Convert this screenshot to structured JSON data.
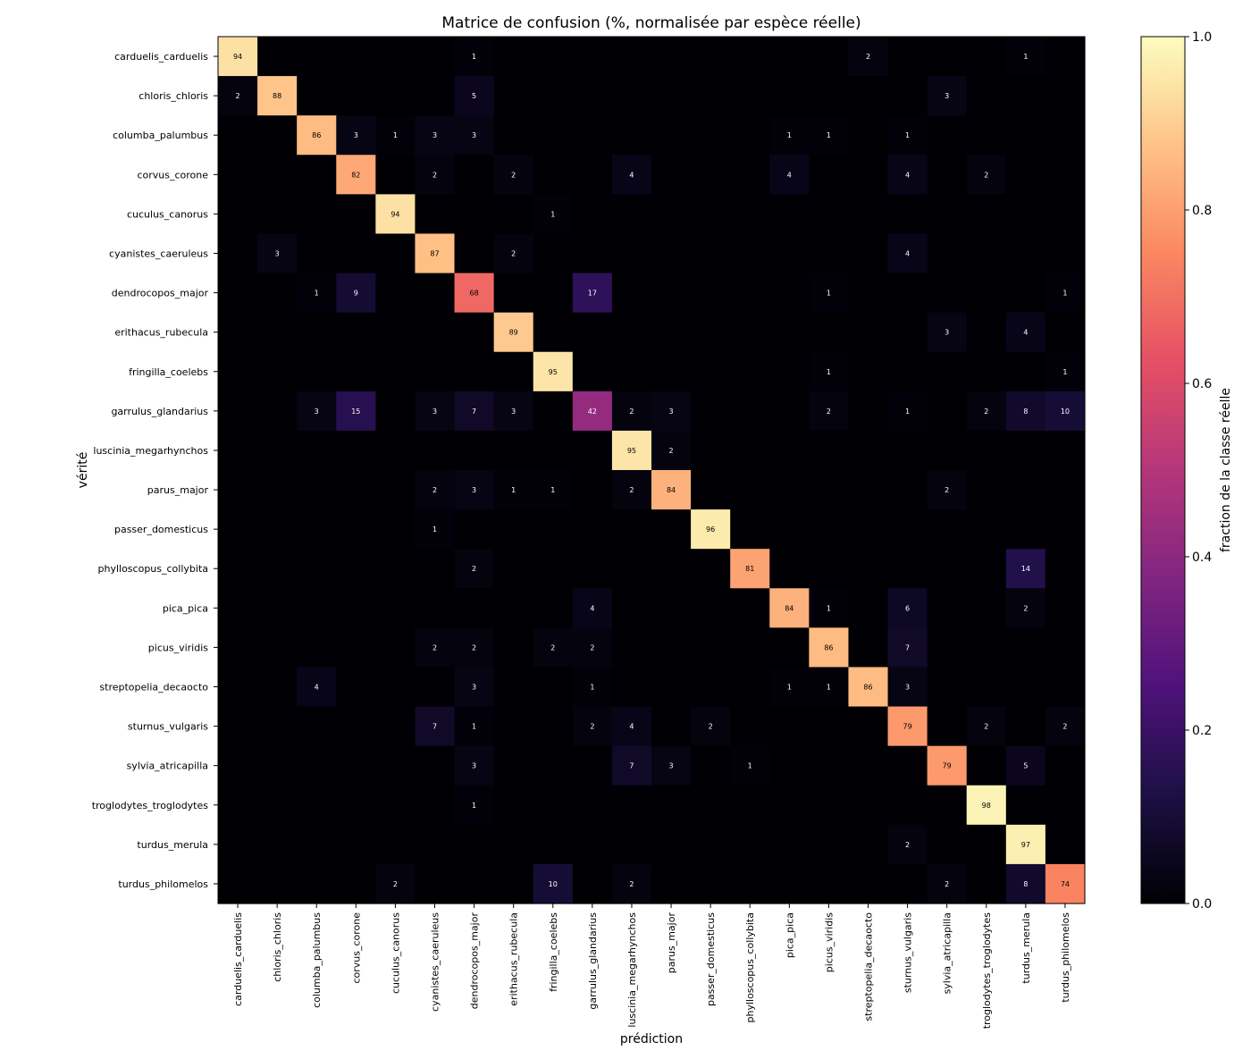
{
  "chart_data": {
    "type": "heatmap",
    "title": "Matrice de confusion (%, normalisée par espèce réelle)",
    "xlabel": "prédiction",
    "ylabel": "vérité",
    "colorbar": {
      "label": "fraction de la classe réelle",
      "range": [
        0.0,
        1.0
      ],
      "ticks": [
        "0.0",
        "0.2",
        "0.4",
        "0.6",
        "0.8",
        "1.0"
      ],
      "colormap": "magma"
    },
    "categories": [
      "carduelis_carduelis",
      "chloris_chloris",
      "columba_palumbus",
      "corvus_corone",
      "cuculus_canorus",
      "cyanistes_caeruleus",
      "dendrocopos_major",
      "erithacus_rubecula",
      "fringilla_coelebs",
      "garrulus_glandarius",
      "luscinia_megarhynchos",
      "parus_major",
      "passer_domesticus",
      "phylloscopus_collybita",
      "pica_pica",
      "picus_viridis",
      "streptopelia_decaocto",
      "sturnus_vulgaris",
      "sylvia_atricapilla",
      "troglodytes_troglodytes",
      "turdus_merula",
      "turdus_philomelos"
    ],
    "values": [
      [
        94,
        0,
        0,
        0,
        0,
        0,
        1,
        0,
        0,
        0,
        0,
        0,
        0,
        0,
        0,
        0,
        2,
        0,
        0,
        0,
        1,
        0
      ],
      [
        2,
        88,
        0,
        0,
        0,
        0,
        5,
        0,
        0,
        0,
        0,
        0,
        0,
        0,
        0,
        0,
        0,
        0,
        3,
        0,
        0,
        0
      ],
      [
        0,
        0,
        86,
        3,
        1,
        3,
        3,
        0,
        0,
        0,
        0,
        0,
        0,
        0,
        1,
        1,
        0,
        1,
        0,
        0,
        0,
        0
      ],
      [
        0,
        0,
        0,
        82,
        0,
        2,
        0,
        2,
        0,
        0,
        4,
        0,
        0,
        0,
        4,
        0,
        0,
        4,
        0,
        2,
        0,
        0
      ],
      [
        0,
        0,
        0,
        0,
        94,
        0,
        0,
        0,
        1,
        0,
        0,
        0,
        0,
        0,
        0,
        0,
        0,
        0,
        0,
        0,
        0,
        0
      ],
      [
        0,
        3,
        0,
        0,
        0,
        87,
        0,
        2,
        0,
        0,
        0,
        0,
        0,
        0,
        0,
        0,
        0,
        4,
        0,
        0,
        0,
        0
      ],
      [
        0,
        0,
        1,
        9,
        0,
        0,
        68,
        0,
        0,
        17,
        0,
        0,
        0,
        0,
        0,
        1,
        0,
        0,
        0,
        0,
        0,
        1
      ],
      [
        0,
        0,
        0,
        0,
        0,
        0,
        0,
        89,
        0,
        0,
        0,
        0,
        0,
        0,
        0,
        0,
        0,
        0,
        3,
        0,
        4,
        0
      ],
      [
        0,
        0,
        0,
        0,
        0,
        0,
        0,
        0,
        95,
        0,
        0,
        0,
        0,
        0,
        0,
        1,
        0,
        0,
        0,
        0,
        0,
        1
      ],
      [
        0,
        0,
        3,
        15,
        0,
        3,
        7,
        3,
        0,
        42,
        2,
        3,
        0,
        0,
        0,
        2,
        0,
        1,
        0,
        2,
        8,
        10
      ],
      [
        0,
        0,
        0,
        0,
        0,
        0,
        0,
        0,
        0,
        0,
        95,
        2,
        0,
        0,
        0,
        0,
        0,
        0,
        0,
        0,
        0,
        0
      ],
      [
        0,
        0,
        0,
        0,
        0,
        2,
        3,
        1,
        1,
        0,
        2,
        84,
        0,
        0,
        0,
        0,
        0,
        0,
        2,
        0,
        0,
        0
      ],
      [
        0,
        0,
        0,
        0,
        0,
        1,
        0,
        0,
        0,
        0,
        0,
        0,
        96,
        0,
        0,
        0,
        0,
        0,
        0,
        0,
        0,
        0
      ],
      [
        0,
        0,
        0,
        0,
        0,
        0,
        2,
        0,
        0,
        0,
        0,
        0,
        0,
        81,
        0,
        0,
        0,
        0,
        0,
        0,
        14,
        0
      ],
      [
        0,
        0,
        0,
        0,
        0,
        0,
        0,
        0,
        0,
        4,
        0,
        0,
        0,
        0,
        84,
        1,
        0,
        6,
        0,
        0,
        2,
        0
      ],
      [
        0,
        0,
        0,
        0,
        0,
        2,
        2,
        0,
        2,
        2,
        0,
        0,
        0,
        0,
        0,
        86,
        0,
        7,
        0,
        0,
        0,
        0
      ],
      [
        0,
        0,
        4,
        0,
        0,
        0,
        3,
        0,
        0,
        1,
        0,
        0,
        0,
        0,
        1,
        1,
        86,
        3,
        0,
        0,
        0,
        0
      ],
      [
        0,
        0,
        0,
        0,
        0,
        7,
        1,
        0,
        0,
        2,
        4,
        0,
        2,
        0,
        0,
        0,
        0,
        79,
        0,
        2,
        0,
        2
      ],
      [
        0,
        0,
        0,
        0,
        0,
        0,
        3,
        0,
        0,
        0,
        7,
        3,
        0,
        1,
        0,
        0,
        0,
        0,
        79,
        0,
        5,
        0
      ],
      [
        0,
        0,
        0,
        0,
        0,
        0,
        1,
        0,
        0,
        0,
        0,
        0,
        0,
        0,
        0,
        0,
        0,
        0,
        0,
        98,
        0,
        0
      ],
      [
        0,
        0,
        0,
        0,
        0,
        0,
        0,
        0,
        0,
        0,
        0,
        0,
        0,
        0,
        0,
        0,
        0,
        2,
        0,
        0,
        97,
        0
      ],
      [
        0,
        0,
        0,
        0,
        2,
        0,
        0,
        0,
        10,
        0,
        2,
        0,
        0,
        0,
        0,
        0,
        0,
        0,
        2,
        0,
        8,
        74
      ]
    ]
  }
}
